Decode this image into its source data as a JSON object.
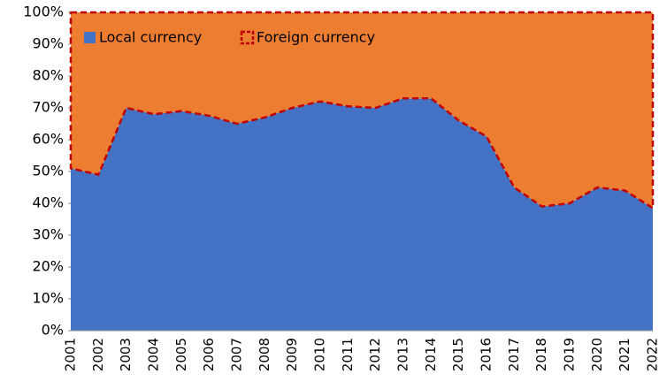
{
  "chart_data": {
    "type": "stacked_area",
    "categories": [
      "2001",
      "2002",
      "2003",
      "2004",
      "2005",
      "2006",
      "2007",
      "2008",
      "2009",
      "2010",
      "2011",
      "2012",
      "2013",
      "2014",
      "2015",
      "2016",
      "2017",
      "2018",
      "2019",
      "2020",
      "2021",
      "2022"
    ],
    "series": [
      {
        "name": "Local currency",
        "color": "#4472c4",
        "values": [
          51,
          49,
          70,
          68,
          69,
          67.5,
          65,
          67,
          70,
          72,
          70.5,
          70,
          73,
          73,
          66,
          61,
          45,
          39,
          40,
          45,
          44,
          38.5
        ]
      },
      {
        "name": "Foreign currency",
        "color": "#ed7d31",
        "border_color": "#c00000",
        "values": [
          49,
          51,
          30,
          32,
          31,
          32.5,
          35,
          33,
          30,
          28,
          29.5,
          30,
          27,
          27,
          34,
          39,
          55,
          61,
          60,
          55,
          56,
          61.5
        ]
      }
    ],
    "ylim": [
      0,
      100
    ],
    "yticks": [
      {
        "value": 0,
        "label": "0%"
      },
      {
        "value": 10,
        "label": "10%"
      },
      {
        "value": 20,
        "label": "20%"
      },
      {
        "value": 30,
        "label": "30%"
      },
      {
        "value": 40,
        "label": "40%"
      },
      {
        "value": 50,
        "label": "50%"
      },
      {
        "value": 60,
        "label": "60%"
      },
      {
        "value": 70,
        "label": "70%"
      },
      {
        "value": 80,
        "label": "80%"
      },
      {
        "value": 90,
        "label": "90%"
      },
      {
        "value": 100,
        "label": "100%"
      }
    ],
    "legend": "top-left"
  }
}
